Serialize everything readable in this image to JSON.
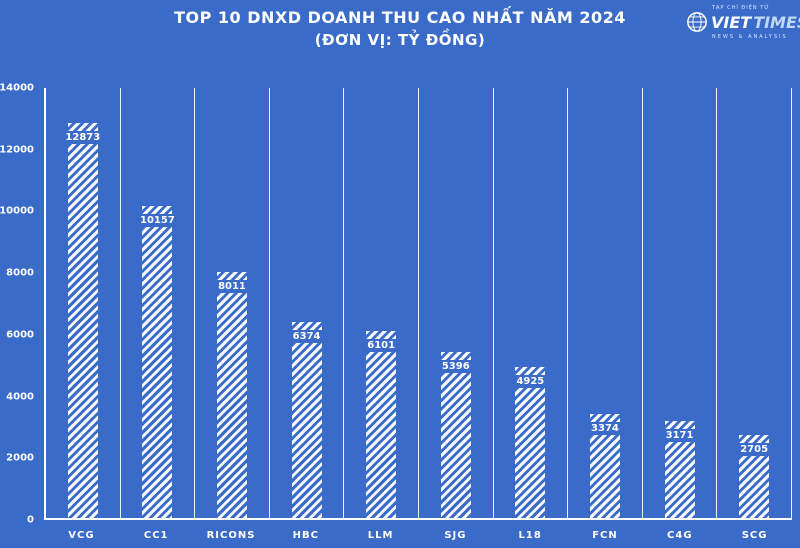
{
  "page": {
    "title": "TOP 10 DNXD DOANH THU CAO NHẤT NĂM 2024",
    "subtitle": "(ĐƠN VỊ: TỶ ĐỒNG)"
  },
  "brand": {
    "top_text": "TẠP CHÍ ĐIỆN TỬ",
    "name_left": "VIET",
    "name_right": "TIMES",
    "tagline": "NEWS & ANALYSIS"
  },
  "colors": {
    "background": "#3A6BC9",
    "foreground": "#FFFFFF",
    "logo_times": "#BFD8F7"
  },
  "chart_data": {
    "type": "bar",
    "title": "TOP 10 DNXD DOANH THU CAO NHẤT NĂM 2024",
    "subtitle": "(ĐƠN VỊ: TỶ ĐỒNG)",
    "categories": [
      "VCG",
      "CC1",
      "RICONS",
      "HBC",
      "LLM",
      "SJG",
      "L18",
      "FCN",
      "C4G",
      "SCG"
    ],
    "values": [
      12873,
      10157,
      8011,
      6374,
      6101,
      5396,
      4925,
      3374,
      3171,
      2705
    ],
    "xlabel": "",
    "ylabel": "",
    "ylim": [
      0,
      14000
    ],
    "yticks": [
      0,
      2000,
      4000,
      6000,
      8000,
      10000,
      12000,
      14000
    ],
    "grid": "vertical-column-separators",
    "legend": "none",
    "bar_style": "white-diagonal-hatch",
    "value_labels": "inside-top"
  }
}
